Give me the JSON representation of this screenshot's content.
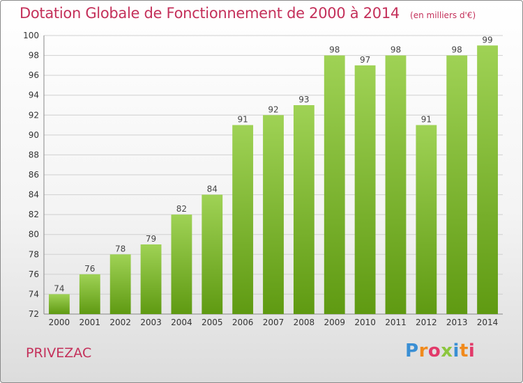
{
  "header": {
    "title": "Dotation Globale de Fonctionnement de 2000 à 2014",
    "subtitle": "(en milliers d'€)"
  },
  "footer": {
    "commune": "PRIVEZAC",
    "logo_text": "Proxiti"
  },
  "colors": {
    "title": "#c4305a",
    "bar_light": "#9fd255",
    "bar_dark": "#5f9a12",
    "grid": "#d0d0d0"
  },
  "chart_data": {
    "type": "bar",
    "title": "Dotation Globale de Fonctionnement de 2000 à 2014",
    "subtitle": "(en milliers d'€)",
    "categories": [
      "2000",
      "2001",
      "2002",
      "2003",
      "2004",
      "2005",
      "2006",
      "2007",
      "2008",
      "2009",
      "2010",
      "2011",
      "2012",
      "2013",
      "2014"
    ],
    "values": [
      74,
      76,
      78,
      79,
      82,
      84,
      91,
      92,
      93,
      98,
      97,
      98,
      91,
      98,
      99
    ],
    "xlabel": "",
    "ylabel": "",
    "ylim": [
      72,
      100
    ],
    "yticks": [
      72,
      74,
      76,
      78,
      80,
      82,
      84,
      86,
      88,
      90,
      92,
      94,
      96,
      98,
      100
    ],
    "grid": true,
    "data_labels": true
  }
}
